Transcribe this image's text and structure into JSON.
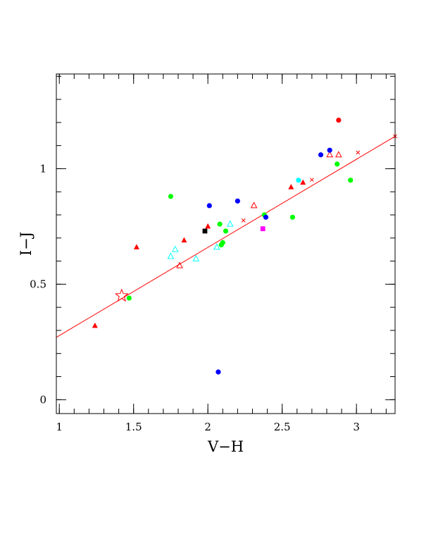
{
  "chart_data": {
    "type": "scatter",
    "xlabel": "V−H",
    "ylabel": "I−J",
    "xlim": [
      0.98,
      3.26
    ],
    "ylim": [
      -0.06,
      1.41
    ],
    "x_ticks": [
      {
        "v": 1,
        "label": "1"
      },
      {
        "v": 1.5,
        "label": "1.5"
      },
      {
        "v": 2,
        "label": "2"
      },
      {
        "v": 2.5,
        "label": "2.5"
      },
      {
        "v": 3,
        "label": "3"
      }
    ],
    "y_ticks": [
      {
        "v": 0,
        "label": "0"
      },
      {
        "v": 0.5,
        "label": "0.5"
      },
      {
        "v": 1,
        "label": "1"
      }
    ],
    "x_minor_step": 0.1,
    "y_minor_step": 0.1,
    "fit_line": {
      "x": [
        0.98,
        3.26
      ],
      "y": [
        0.27,
        1.14
      ],
      "color": "#ff0000"
    },
    "line_crosses": {
      "color": "#ff0000",
      "x": [
        2.24,
        2.7,
        3.01,
        3.26
      ],
      "y": [
        0.776,
        0.952,
        1.07,
        1.14
      ]
    },
    "colors": {
      "red": "#ff0000",
      "green": "#00ff00",
      "blue": "#0000ff",
      "cyan": "#00ffff",
      "black": "#000000",
      "magenta": "#ff00ff"
    },
    "series": [
      {
        "marker": "filled-triangle",
        "color": "#ff0000",
        "points": [
          [
            1.24,
            0.32
          ],
          [
            1.52,
            0.66
          ],
          [
            1.84,
            0.69
          ],
          [
            2.0,
            0.75
          ],
          [
            2.56,
            0.92
          ],
          [
            2.64,
            0.94
          ]
        ]
      },
      {
        "marker": "open-triangle",
        "color": "#ff0000",
        "points": [
          [
            1.81,
            0.58
          ],
          [
            2.31,
            0.84
          ],
          [
            2.82,
            1.06
          ],
          [
            2.88,
            1.06
          ]
        ]
      },
      {
        "marker": "open-triangle",
        "color": "#00ffff",
        "points": [
          [
            1.75,
            0.62
          ],
          [
            1.78,
            0.65
          ],
          [
            1.92,
            0.61
          ],
          [
            2.06,
            0.66
          ],
          [
            2.15,
            0.76
          ]
        ]
      },
      {
        "marker": "filled-circle",
        "color": "#00ff00",
        "points": [
          [
            1.47,
            0.44
          ],
          [
            1.75,
            0.88
          ],
          [
            2.08,
            0.76
          ],
          [
            2.09,
            0.67
          ],
          [
            2.1,
            0.68
          ],
          [
            2.12,
            0.73
          ],
          [
            2.38,
            0.8
          ],
          [
            2.57,
            0.79
          ],
          [
            2.87,
            1.02
          ],
          [
            2.96,
            0.95
          ]
        ]
      },
      {
        "marker": "filled-circle",
        "color": "#0000ff",
        "points": [
          [
            2.01,
            0.84
          ],
          [
            2.07,
            0.12
          ],
          [
            2.2,
            0.86
          ],
          [
            2.39,
            0.79
          ],
          [
            2.76,
            1.06
          ],
          [
            2.82,
            1.08
          ]
        ]
      },
      {
        "marker": "filled-circle",
        "color": "#ff0000",
        "points": [
          [
            2.88,
            1.21
          ]
        ]
      },
      {
        "marker": "filled-circle",
        "color": "#00ffff",
        "points": [
          [
            2.61,
            0.95
          ]
        ]
      },
      {
        "marker": "filled-square",
        "color": "#000000",
        "points": [
          [
            1.98,
            0.73
          ]
        ]
      },
      {
        "marker": "filled-square",
        "color": "#ff00ff",
        "points": [
          [
            2.37,
            0.74
          ]
        ]
      },
      {
        "marker": "open-star",
        "color": "#ff0000",
        "points": [
          [
            1.42,
            0.45
          ]
        ]
      }
    ]
  }
}
